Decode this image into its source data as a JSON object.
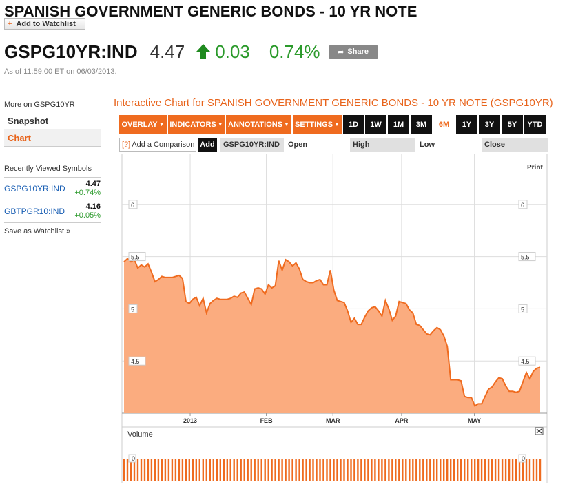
{
  "header": {
    "title": "SPANISH GOVERNMENT GENERIC BONDS - 10 YR NOTE",
    "add_watchlist": "Add to Watchlist",
    "ticker": "GSPG10YR:IND",
    "price": "4.47",
    "change": "0.03",
    "change_pct": "0.74%",
    "share": "Share",
    "as_of": "As of 11:59:00 ET on 06/03/2013."
  },
  "sidebar": {
    "more_on": "More on GSPG10YR",
    "snapshot": "Snapshot",
    "chart": "Chart",
    "recent_title": "Recently Viewed Symbols",
    "recent": [
      {
        "symbol": "GSPG10YR:IND",
        "value": "4.47",
        "change": "+0.74%"
      },
      {
        "symbol": "GBTPGR10:IND",
        "value": "4.16",
        "change": "+0.05%"
      }
    ],
    "save_watchlist": "Save as Watchlist"
  },
  "chart_panel": {
    "title": "Interactive Chart for SPANISH GOVERNMENT GENERIC BONDS - 10 YR NOTE (GSPG10YR)",
    "menus": [
      "OVERLAY",
      "INDICATORS",
      "ANNOTATIONS",
      "SETTINGS"
    ],
    "periods": [
      "1D",
      "1W",
      "1M",
      "3M",
      "6M",
      "1Y",
      "3Y",
      "5Y",
      "YTD"
    ],
    "active_period": "6M",
    "compare_placeholder": "Add a Comparison",
    "compare_help": "[?]",
    "add_label": "Add",
    "symbol": "GSPG10YR:IND",
    "ohlc": [
      "Open",
      "High",
      "Low",
      "Close"
    ],
    "print": "Print",
    "volume_label": "Volume",
    "close_icon": "close-icon"
  },
  "colors": {
    "accent": "#ef6b1f",
    "up": "#2b9a2b",
    "area_fill": "#fbac7f",
    "line": "#ef6b1f",
    "link": "#1a5fb4"
  },
  "chart_data": {
    "type": "area",
    "x_ticks": [
      "2013",
      "FEB",
      "MAR",
      "APR",
      "MAY"
    ],
    "y_ticks": [
      4.5,
      5,
      5.5,
      6
    ],
    "ylim": [
      4.0,
      6.48
    ],
    "grid": true,
    "series": [
      {
        "values": [
          5.45,
          5.48,
          5.45,
          5.47,
          5.39,
          5.42,
          5.4,
          5.43,
          5.35,
          5.26,
          5.28,
          5.31,
          5.3,
          5.3,
          5.3,
          5.31,
          5.32,
          5.29,
          5.07,
          5.05,
          5.09,
          5.11,
          5.03,
          5.1,
          4.96,
          5.05,
          5.08,
          5.1,
          5.09,
          5.09,
          5.09,
          5.1,
          5.12,
          5.11,
          5.15,
          5.16,
          5.1,
          5.04,
          5.19,
          5.2,
          5.19,
          5.14,
          5.23,
          5.2,
          5.22,
          5.46,
          5.37,
          5.47,
          5.45,
          5.41,
          5.44,
          5.38,
          5.28,
          5.26,
          5.25,
          5.25,
          5.27,
          5.28,
          5.23,
          5.23,
          5.37,
          5.18,
          5.08,
          5.07,
          5.06,
          4.98,
          4.87,
          4.91,
          4.85,
          4.85,
          4.92,
          4.98,
          5.01,
          5.02,
          4.98,
          4.93,
          5.08,
          5.0,
          4.89,
          4.93,
          5.07,
          5.06,
          5.05,
          4.99,
          4.96,
          4.85,
          4.84,
          4.8,
          4.76,
          4.75,
          4.79,
          4.82,
          4.8,
          4.74,
          4.64,
          4.32,
          4.32,
          4.32,
          4.31,
          4.16,
          4.15,
          4.15,
          4.07,
          4.09,
          4.09,
          4.16,
          4.23,
          4.25,
          4.3,
          4.34,
          4.33,
          4.26,
          4.21,
          4.21,
          4.2,
          4.21,
          4.3,
          4.39,
          4.33,
          4.4,
          4.43,
          4.44
        ]
      }
    ],
    "volume": {
      "label": "Volume",
      "y_ticks": [
        0
      ],
      "values": "all zero"
    }
  }
}
